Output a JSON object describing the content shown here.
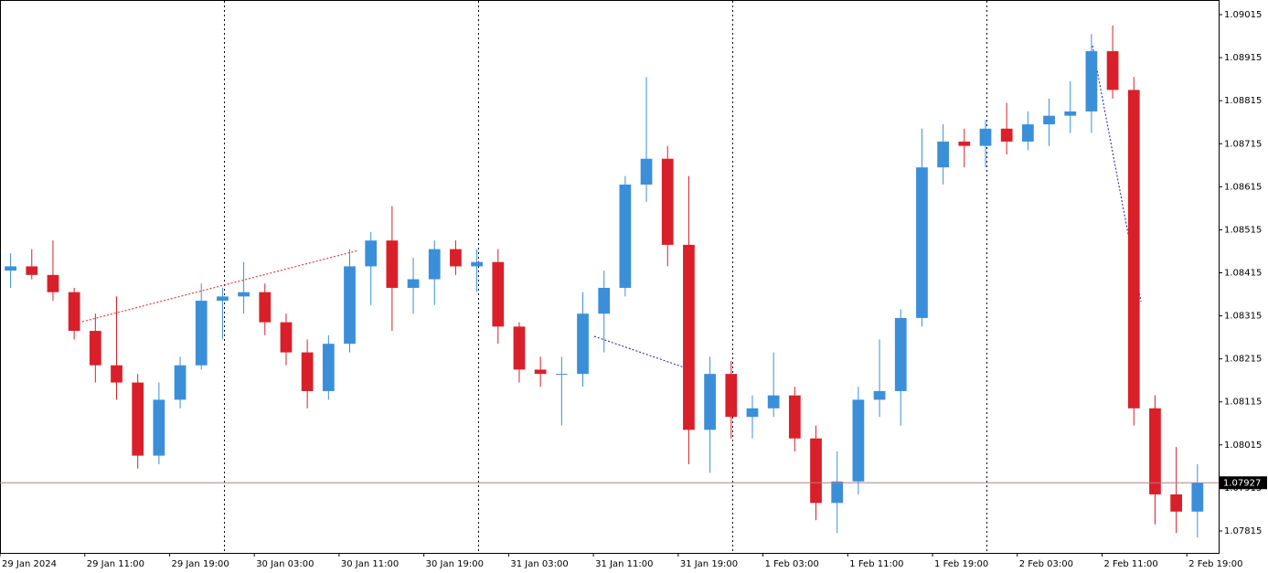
{
  "chart_data": {
    "type": "candlestick",
    "up_color": "#3b8fd9",
    "down_color": "#d9202a",
    "x": [
      4,
      6,
      8,
      10,
      12,
      14,
      16,
      18,
      20,
      22,
      24,
      26,
      28,
      30,
      32,
      34,
      36,
      38,
      40,
      42,
      44,
      46,
      48,
      50,
      52,
      54,
      56,
      58,
      60,
      62,
      64,
      66,
      68,
      70,
      72,
      74,
      76,
      78,
      80,
      82,
      84,
      86,
      88,
      90,
      92,
      94,
      96,
      98,
      100,
      102,
      104,
      106,
      108,
      110,
      112,
      114,
      116
    ],
    "open": [
      1.0842,
      1.0843,
      1.0841,
      1.0837,
      1.0828,
      1.082,
      1.0816,
      1.0799,
      1.0812,
      1.082,
      1.0835,
      1.0836,
      1.0837,
      1.083,
      1.0823,
      1.0814,
      1.0825,
      1.0843,
      1.0849,
      1.0838,
      1.084,
      1.0847,
      1.0843,
      1.0844,
      1.0829,
      1.0819,
      1.0818,
      1.0818,
      1.0832,
      1.0838,
      1.0862,
      1.0868,
      1.0848,
      1.0805,
      1.0818,
      1.0808,
      1.081,
      1.0813,
      1.0803,
      1.0788,
      1.0793,
      1.0812,
      1.0814,
      1.0831,
      1.0866,
      1.0872,
      1.0871,
      1.0875,
      1.0872,
      1.0876,
      1.0878,
      1.0879,
      1.0893,
      1.0884,
      1.081,
      1.079,
      1.0786
    ],
    "high": [
      1.0846,
      1.0847,
      1.0849,
      1.0838,
      1.0832,
      1.0836,
      1.0818,
      1.0816,
      1.0822,
      1.0839,
      1.0838,
      1.0844,
      1.0839,
      1.0832,
      1.0826,
      1.0827,
      1.0847,
      1.0851,
      1.0857,
      1.0845,
      1.0849,
      1.0849,
      1.0847,
      1.0847,
      1.083,
      1.0822,
      1.0822,
      1.0837,
      1.0842,
      1.0864,
      1.0887,
      1.0871,
      1.0864,
      1.0822,
      1.0821,
      1.0813,
      1.0823,
      1.0815,
      1.0806,
      1.08,
      1.0815,
      1.0826,
      1.0833,
      1.0875,
      1.0876,
      1.0875,
      1.0877,
      1.0881,
      1.0879,
      1.0882,
      1.0886,
      1.0897,
      1.0899,
      1.0887,
      1.0813,
      1.0801,
      1.0797
    ],
    "low": [
      1.0838,
      1.084,
      1.0835,
      1.0826,
      1.0816,
      1.0812,
      1.0796,
      1.0797,
      1.081,
      1.0819,
      1.0826,
      1.0832,
      1.0827,
      1.082,
      1.081,
      1.0812,
      1.0823,
      1.0834,
      1.0828,
      1.0832,
      1.0834,
      1.0841,
      1.0837,
      1.0825,
      1.0816,
      1.0815,
      1.0806,
      1.0815,
      1.0823,
      1.0836,
      1.0858,
      1.0843,
      1.0797,
      1.0795,
      1.0803,
      1.0803,
      1.0808,
      1.08,
      1.0784,
      1.0781,
      1.079,
      1.0808,
      1.0806,
      1.0829,
      1.0862,
      1.0866,
      1.0866,
      1.0869,
      1.087,
      1.0871,
      1.0874,
      1.0874,
      1.0882,
      1.0806,
      1.0783,
      1.0781,
      1.078
    ],
    "close": [
      1.0843,
      1.0841,
      1.0837,
      1.0828,
      1.082,
      1.0816,
      1.0799,
      1.0812,
      1.082,
      1.0835,
      1.0836,
      1.0837,
      1.083,
      1.0823,
      1.0814,
      1.0825,
      1.0843,
      1.0849,
      1.0838,
      1.084,
      1.0847,
      1.0843,
      1.0844,
      1.0829,
      1.0819,
      1.0818,
      1.0818,
      1.0832,
      1.0838,
      1.0862,
      1.0868,
      1.0848,
      1.0805,
      1.0818,
      1.0808,
      1.081,
      1.0813,
      1.0803,
      1.0788,
      1.0793,
      1.0812,
      1.0814,
      1.0831,
      1.0866,
      1.0872,
      1.0871,
      1.0875,
      1.0872,
      1.0876,
      1.0878,
      1.0879,
      1.0893,
      1.0884,
      1.081,
      1.079,
      1.0786,
      1.07927
    ],
    "last_price": 1.07927,
    "xlim": [
      3,
      118
    ],
    "xticks": [
      {
        "value": 3,
        "label": "29 Jan 2024"
      },
      {
        "value": 11,
        "label": "29 Jan 11:00"
      },
      {
        "value": 19,
        "label": "29 Jan 19:00"
      },
      {
        "value": 27,
        "label": "30 Jan 03:00"
      },
      {
        "value": 35,
        "label": "30 Jan 11:00"
      },
      {
        "value": 43,
        "label": "30 Jan 19:00"
      },
      {
        "value": 51,
        "label": "31 Jan 03:00"
      },
      {
        "value": 59,
        "label": "31 Jan 11:00"
      },
      {
        "value": 67,
        "label": "31 Jan 19:00"
      },
      {
        "value": 75,
        "label": "1 Feb 03:00"
      },
      {
        "value": 83,
        "label": "1 Feb 11:00"
      },
      {
        "value": 91,
        "label": "1 Feb 19:00"
      },
      {
        "value": 99,
        "label": "2 Feb 03:00"
      },
      {
        "value": 107,
        "label": "2 Feb 11:00"
      },
      {
        "value": 115,
        "label": "2 Feb 19:00"
      }
    ],
    "ylim": [
      1.07764,
      1.09049
    ],
    "yticks": [
      1.09015,
      1.08915,
      1.08815,
      1.08715,
      1.08615,
      1.08515,
      1.08415,
      1.08315,
      1.08215,
      1.08115,
      1.08015,
      1.07915,
      1.07815
    ]
  }
}
